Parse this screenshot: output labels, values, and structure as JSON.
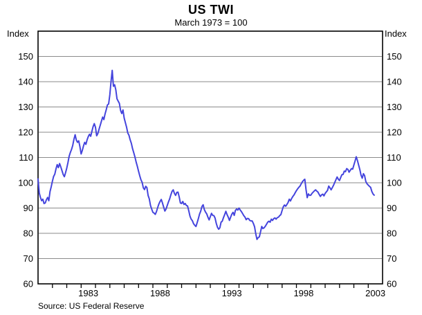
{
  "header": {
    "title": "US TWI",
    "subtitle": "March 1973 = 100"
  },
  "axis_units": {
    "left": "Index",
    "right": "Index"
  },
  "footer": {
    "source": "Source: US Federal Reserve"
  },
  "chart_data": {
    "type": "line",
    "title": "US TWI",
    "subtitle": "March 1973 = 100",
    "ylabel": "Index",
    "source": "Source: US Federal Reserve",
    "grid": true,
    "legend": "none",
    "line_color": "#4444DD",
    "gridline_color": "#8a8a8a",
    "frame_color": "#000000",
    "x_start": 1980.0,
    "x_end": 2004.0,
    "x_year_ticks": [
      1981,
      1982,
      1983,
      1984,
      1985,
      1986,
      1987,
      1988,
      1989,
      1990,
      1991,
      1992,
      1993,
      1994,
      1995,
      1996,
      1997,
      1998,
      1999,
      2000,
      2001,
      2002,
      2003
    ],
    "x_tick_labels": [
      "1983",
      "1988",
      "1993",
      "1998",
      "2003"
    ],
    "x_tick_label_positions": [
      1983.5,
      1988.5,
      1993.5,
      1998.5,
      2003.5
    ],
    "ylim": [
      60,
      160
    ],
    "y_axis_labels": [
      60,
      70,
      80,
      90,
      100,
      110,
      120,
      130,
      140,
      150
    ],
    "gridline_values": [
      70,
      80,
      90,
      100,
      110,
      120,
      130,
      140,
      150
    ],
    "series": [
      {
        "name": "US TWI (March 1973 = 100)",
        "frequency": "monthly",
        "start": "1980-01",
        "end": "2003-06",
        "values": [
          101.5,
          96.0,
          94.2,
          92.9,
          93.5,
          91.8,
          92.0,
          93.3,
          94.2,
          92.9,
          96.5,
          98.4,
          100.6,
          102.5,
          103.4,
          105.5,
          107.2,
          106.0,
          107.6,
          106.3,
          104.8,
          103.3,
          102.4,
          104.0,
          105.8,
          108.0,
          110.5,
          112.0,
          113.2,
          114.8,
          117.2,
          119.0,
          116.9,
          116.0,
          116.6,
          114.3,
          111.4,
          112.8,
          114.6,
          116.0,
          115.2,
          117.0,
          118.3,
          119.2,
          118.4,
          120.3,
          122.2,
          123.4,
          122.0,
          118.6,
          119.5,
          121.2,
          122.8,
          124.4,
          126.0,
          125.0,
          127.2,
          128.9,
          130.8,
          131.2,
          134.8,
          140.0,
          144.5,
          138.2,
          138.8,
          136.8,
          133.2,
          132.3,
          131.4,
          128.6,
          127.4,
          128.8,
          125.6,
          123.8,
          122.0,
          119.7,
          118.8,
          117.0,
          115.6,
          113.5,
          111.9,
          110.2,
          108.2,
          106.5,
          104.6,
          102.8,
          101.2,
          100.2,
          98.0,
          97.3,
          98.6,
          98.1,
          95.0,
          93.6,
          91.0,
          89.6,
          88.3,
          88.0,
          87.5,
          88.6,
          90.2,
          91.6,
          92.6,
          93.4,
          92.0,
          90.4,
          88.8,
          89.6,
          91.0,
          92.4,
          93.6,
          95.2,
          96.6,
          97.2,
          95.8,
          95.0,
          96.2,
          96.3,
          94.4,
          92.0,
          91.8,
          92.6,
          91.4,
          91.8,
          91.0,
          90.8,
          88.9,
          86.8,
          85.6,
          85.0,
          83.8,
          83.2,
          82.7,
          84.2,
          85.8,
          87.6,
          88.8,
          90.6,
          91.3,
          89.4,
          88.4,
          87.7,
          86.4,
          85.3,
          86.6,
          87.9,
          87.1,
          87.0,
          86.0,
          83.9,
          82.4,
          81.6,
          82.2,
          84.4,
          84.8,
          86.2,
          87.4,
          88.7,
          87.4,
          86.4,
          85.1,
          86.4,
          87.6,
          88.3,
          87.1,
          89.1,
          89.6,
          89.2,
          90.0,
          89.2,
          88.6,
          87.8,
          87.0,
          86.4,
          85.4,
          85.9,
          85.8,
          85.1,
          84.9,
          84.9,
          83.9,
          82.6,
          79.8,
          77.6,
          78.3,
          78.6,
          80.6,
          82.7,
          81.9,
          82.2,
          82.8,
          83.6,
          84.4,
          84.8,
          84.4,
          85.6,
          85.1,
          85.8,
          86.1,
          85.6,
          86.2,
          86.4,
          87.0,
          87.4,
          89.0,
          90.5,
          91.2,
          90.7,
          91.4,
          92.2,
          93.5,
          92.8,
          93.8,
          94.6,
          95.2,
          96.1,
          96.9,
          97.6,
          98.2,
          98.7,
          99.6,
          100.4,
          101.0,
          101.4,
          97.4,
          94.1,
          95.6,
          95.0,
          95.1,
          95.8,
          96.3,
          96.8,
          97.2,
          96.7,
          96.3,
          95.4,
          94.6,
          95.2,
          95.5,
          94.8,
          95.8,
          96.4,
          97.0,
          98.7,
          98.0,
          97.2,
          98.1,
          99.0,
          100.1,
          101.2,
          102.3,
          101.4,
          100.9,
          102.1,
          103.2,
          103.3,
          104.6,
          104.4,
          105.6,
          105.3,
          104.2,
          104.9,
          105.6,
          105.4,
          107.0,
          108.6,
          110.3,
          108.8,
          107.0,
          105.2,
          103.0,
          101.8,
          103.6,
          102.8,
          100.5,
          99.6,
          99.1,
          98.6,
          98.2,
          96.6,
          95.6,
          95.1
        ]
      }
    ]
  }
}
